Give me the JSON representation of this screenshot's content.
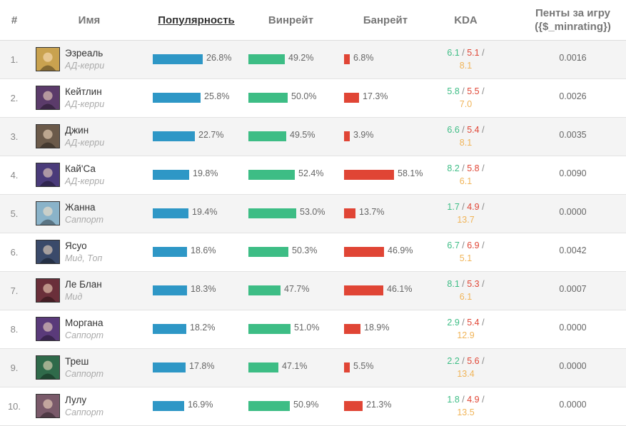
{
  "header": {
    "rank": "#",
    "name": "Имя",
    "popularity": "Популярность",
    "winrate": "Винрейт",
    "banrate": "Банрейт",
    "kda": "KDA",
    "penta_line1": "Пенты за игру",
    "penta_line2": "({$_minrating})"
  },
  "colors": {
    "popularity_bar": "#2e97c6",
    "winrate_bar": "#3dbd85",
    "banrate_bar": "#e04535",
    "kda_kills": "#3dbd85",
    "kda_deaths": "#e04535",
    "kda_assists": "#f0b458"
  },
  "rows": [
    {
      "rank": "1.",
      "name": "Эзреаль",
      "role": "АД-керри",
      "popularity": "26.8%",
      "popularity_value": 26.8,
      "winrate": "49.2%",
      "winrate_value": 49.2,
      "banrate": "6.8%",
      "banrate_value": 6.8,
      "kda_k": "6.1",
      "kda_d": "5.1",
      "kda_a": "8.1",
      "penta": "0.0016",
      "avatar_color": "#c9a24f"
    },
    {
      "rank": "2.",
      "name": "Кейтлин",
      "role": "АД-керри",
      "popularity": "25.8%",
      "popularity_value": 25.8,
      "winrate": "50.0%",
      "winrate_value": 50.0,
      "banrate": "17.3%",
      "banrate_value": 17.3,
      "kda_k": "5.8",
      "kda_d": "5.5",
      "kda_a": "7.0",
      "penta": "0.0026",
      "avatar_color": "#5b3b6a"
    },
    {
      "rank": "3.",
      "name": "Джин",
      "role": "АД-керри",
      "popularity": "22.7%",
      "popularity_value": 22.7,
      "winrate": "49.5%",
      "winrate_value": 49.5,
      "banrate": "3.9%",
      "banrate_value": 3.9,
      "kda_k": "6.6",
      "kda_d": "5.4",
      "kda_a": "8.1",
      "penta": "0.0035",
      "avatar_color": "#6b5a4a"
    },
    {
      "rank": "4.",
      "name": "Кай'Са",
      "role": "АД-керри",
      "popularity": "19.8%",
      "popularity_value": 19.8,
      "winrate": "52.4%",
      "winrate_value": 52.4,
      "banrate": "58.1%",
      "banrate_value": 58.1,
      "kda_k": "8.2",
      "kda_d": "5.8",
      "kda_a": "6.1",
      "penta": "0.0090",
      "avatar_color": "#4a3b7a"
    },
    {
      "rank": "5.",
      "name": "Жанна",
      "role": "Саппорт",
      "popularity": "19.4%",
      "popularity_value": 19.4,
      "winrate": "53.0%",
      "winrate_value": 53.0,
      "banrate": "13.7%",
      "banrate_value": 13.7,
      "kda_k": "1.7",
      "kda_d": "4.9",
      "kda_a": "13.7",
      "penta": "0.0000",
      "avatar_color": "#8ab3c9"
    },
    {
      "rank": "6.",
      "name": "Ясуо",
      "role": "Мид, Топ",
      "popularity": "18.6%",
      "popularity_value": 18.6,
      "winrate": "50.3%",
      "winrate_value": 50.3,
      "banrate": "46.9%",
      "banrate_value": 46.9,
      "kda_k": "6.7",
      "kda_d": "6.9",
      "kda_a": "5.1",
      "penta": "0.0042",
      "avatar_color": "#3a4a6a"
    },
    {
      "rank": "7.",
      "name": "Ле Блан",
      "role": "Мид",
      "popularity": "18.3%",
      "popularity_value": 18.3,
      "winrate": "47.7%",
      "winrate_value": 47.7,
      "banrate": "46.1%",
      "banrate_value": 46.1,
      "kda_k": "8.1",
      "kda_d": "5.3",
      "kda_a": "6.1",
      "penta": "0.0007",
      "avatar_color": "#6a2f3a"
    },
    {
      "rank": "8.",
      "name": "Моргана",
      "role": "Саппорт",
      "popularity": "18.2%",
      "popularity_value": 18.2,
      "winrate": "51.0%",
      "winrate_value": 51.0,
      "banrate": "18.9%",
      "banrate_value": 18.9,
      "kda_k": "2.9",
      "kda_d": "5.4",
      "kda_a": "12.9",
      "penta": "0.0000",
      "avatar_color": "#5a3a7a"
    },
    {
      "rank": "9.",
      "name": "Треш",
      "role": "Саппорт",
      "popularity": "17.8%",
      "popularity_value": 17.8,
      "winrate": "47.1%",
      "winrate_value": 47.1,
      "banrate": "5.5%",
      "banrate_value": 5.5,
      "kda_k": "2.2",
      "kda_d": "5.6",
      "kda_a": "13.4",
      "penta": "0.0000",
      "avatar_color": "#2f6a4a"
    },
    {
      "rank": "10.",
      "name": "Лулу",
      "role": "Саппорт",
      "popularity": "16.9%",
      "popularity_value": 16.9,
      "winrate": "50.9%",
      "winrate_value": 50.9,
      "banrate": "21.3%",
      "banrate_value": 21.3,
      "kda_k": "1.8",
      "kda_d": "4.9",
      "kda_a": "13.5",
      "penta": "0.0000",
      "avatar_color": "#7a5a6a"
    }
  ]
}
